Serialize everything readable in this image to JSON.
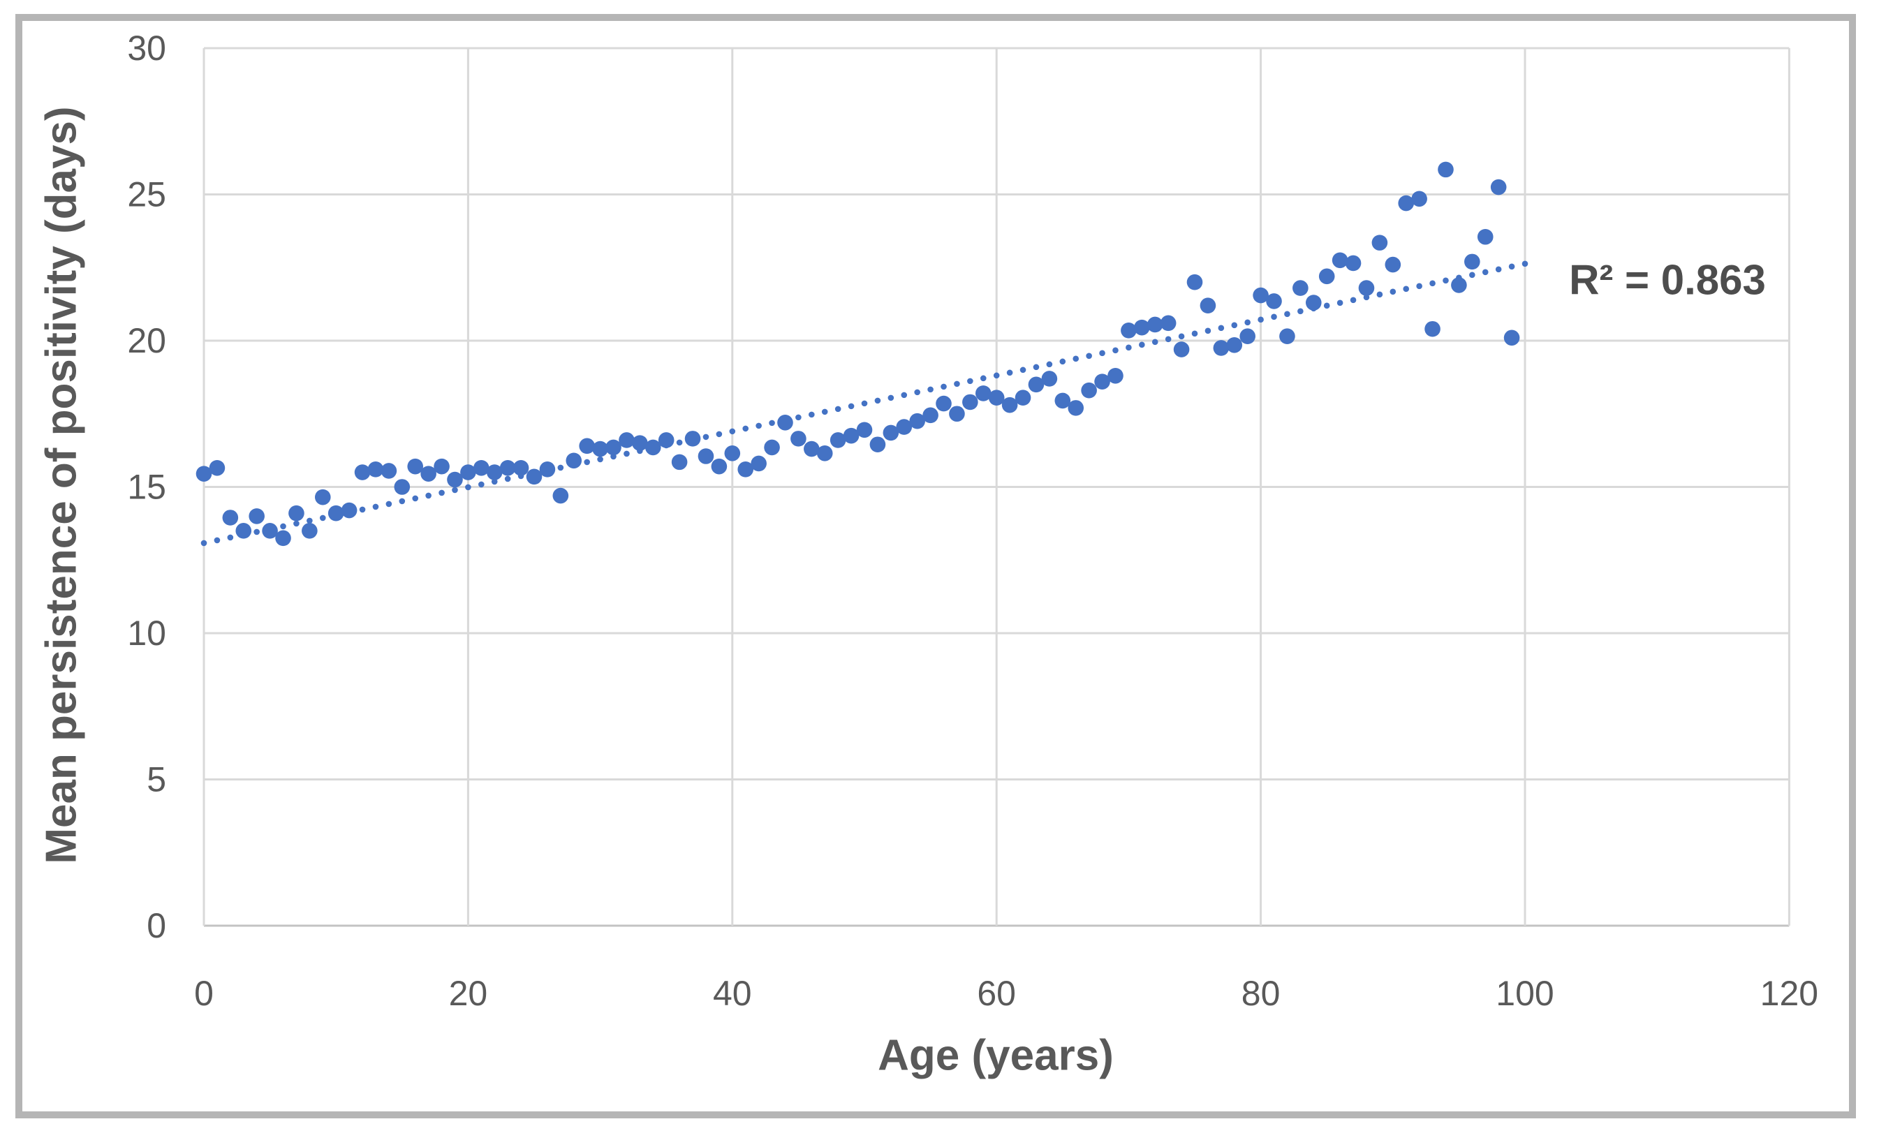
{
  "chart": {
    "y_axis_title": "Mean persistence of positivity (days)",
    "x_axis_title": "Age (years)",
    "annotation_r_squared": "R² = 0.863"
  },
  "chart_data": {
    "type": "scatter",
    "title": "",
    "xlabel": "Age (years)",
    "ylabel": "Mean persistence of positivity (days)",
    "xlim": [
      0,
      120
    ],
    "ylim": [
      0,
      30
    ],
    "x_ticks": [
      0,
      20,
      40,
      60,
      80,
      100,
      120
    ],
    "y_ticks": [
      0,
      5,
      10,
      15,
      20,
      25,
      30
    ],
    "grid": true,
    "legend": "none",
    "annotation": "R² = 0.863",
    "series": [
      {
        "name": "Mean persistence of positivity",
        "x": [
          0,
          1,
          2,
          3,
          4,
          5,
          6,
          7,
          8,
          9,
          10,
          11,
          12,
          13,
          14,
          15,
          16,
          17,
          18,
          19,
          20,
          21,
          22,
          23,
          24,
          25,
          26,
          27,
          28,
          29,
          30,
          31,
          32,
          33,
          34,
          35,
          36,
          37,
          38,
          39,
          40,
          41,
          42,
          43,
          44,
          45,
          46,
          47,
          48,
          49,
          50,
          51,
          52,
          53,
          54,
          55,
          56,
          57,
          58,
          59,
          60,
          61,
          62,
          63,
          64,
          65,
          66,
          67,
          68,
          69,
          70,
          71,
          72,
          73,
          74,
          75,
          76,
          77,
          78,
          79,
          80,
          81,
          82,
          83,
          84,
          85,
          86,
          87,
          88,
          89,
          90,
          91,
          92,
          93,
          94,
          95,
          96,
          97,
          98,
          99
        ],
        "y": [
          15.45,
          15.65,
          13.95,
          13.5,
          14.0,
          13.5,
          13.25,
          14.1,
          13.5,
          14.65,
          14.1,
          14.2,
          15.5,
          15.6,
          15.55,
          15.0,
          15.7,
          15.45,
          15.7,
          15.25,
          15.5,
          15.65,
          15.5,
          15.65,
          15.65,
          15.35,
          15.6,
          14.7,
          15.9,
          16.4,
          16.3,
          16.35,
          16.6,
          16.5,
          16.35,
          16.6,
          15.85,
          16.65,
          16.05,
          15.7,
          16.15,
          15.6,
          15.8,
          16.35,
          17.2,
          16.65,
          16.3,
          16.15,
          16.6,
          16.75,
          16.95,
          16.45,
          16.85,
          17.05,
          17.25,
          17.45,
          17.85,
          17.5,
          17.9,
          18.2,
          18.05,
          17.8,
          18.05,
          18.5,
          18.7,
          17.95,
          17.7,
          18.3,
          18.6,
          18.8,
          20.35,
          20.45,
          20.55,
          20.6,
          19.7,
          22.0,
          21.2,
          19.75,
          19.85,
          20.15,
          21.55,
          21.35,
          20.15,
          21.8,
          21.3,
          22.2,
          22.75,
          22.65,
          21.8,
          23.35,
          22.6,
          24.7,
          24.85,
          20.4,
          25.85,
          21.9,
          22.7,
          23.55,
          25.25,
          20.1
        ]
      }
    ],
    "trendline": {
      "style": "dotted",
      "intercept": 13.08,
      "slope": 0.0955,
      "x_range": [
        0,
        100
      ],
      "r_squared": 0.863
    },
    "colors": {
      "marker": "#4472C4",
      "trend": "#4472C4",
      "gridline": "#D9D9D9",
      "axis_line": "#C3C3C3",
      "axis_text": "#595959",
      "frame": "#B5B5B5"
    }
  }
}
